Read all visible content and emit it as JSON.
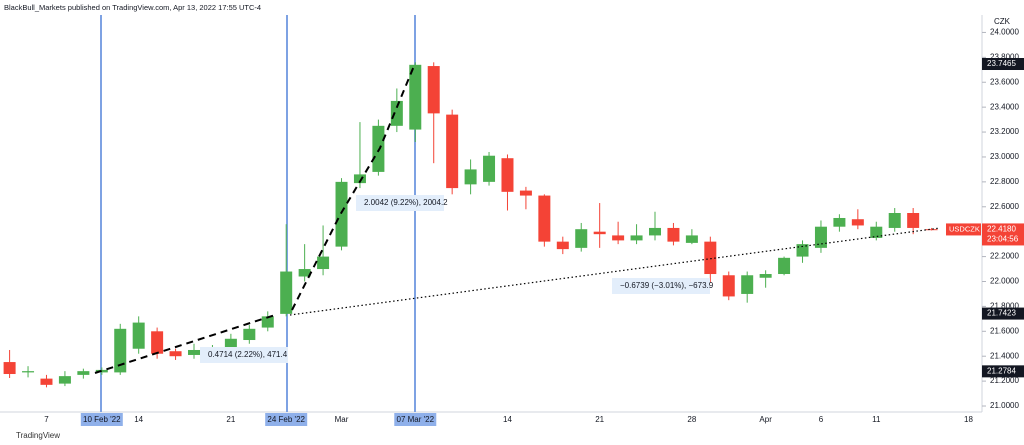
{
  "header": "BlackBull_Markets published on TradingView.com, Apr 13, 2022 17:55 UTC-4",
  "footer": "TradingView",
  "chart_data": {
    "type": "candlestick",
    "currency": "CZK",
    "symbol": "USDCZK",
    "countdown": "23:04:56",
    "categories": [
      null,
      null,
      "7",
      null,
      null,
      "10 Feb '22",
      null,
      "14",
      null,
      null,
      null,
      null,
      "21",
      null,
      null,
      "24 Feb '22",
      null,
      null,
      "Mar",
      null,
      null,
      null,
      "07 Mar '22",
      null,
      null,
      null,
      null,
      "14",
      null,
      null,
      null,
      null,
      "21",
      null,
      null,
      null,
      null,
      "28",
      null,
      null,
      null,
      "Apr",
      null,
      null,
      "6",
      null,
      null,
      "11",
      null,
      null,
      null,
      null,
      "18"
    ],
    "open": [
      21.353,
      21.27,
      21.22,
      21.18,
      21.25,
      21.27,
      21.27,
      21.46,
      21.6,
      21.44,
      21.41,
      21.44,
      21.45,
      21.53,
      21.63,
      21.74,
      22.04,
      22.1,
      22.28,
      22.79,
      22.88,
      23.25,
      23.22,
      23.73,
      23.34,
      22.78,
      22.8,
      22.99,
      22.73,
      22.69,
      22.32,
      22.27,
      22.4,
      22.37,
      22.33,
      22.37,
      22.43,
      22.31,
      22.32,
      22.05,
      21.9,
      22.03,
      22.06,
      22.2,
      22.27,
      22.44,
      22.5,
      22.35,
      22.43,
      22.55,
      22.42,
      null,
      null
    ],
    "high": [
      21.45,
      21.32,
      21.25,
      21.28,
      21.3,
      21.31,
      21.66,
      21.72,
      21.63,
      21.46,
      21.5,
      21.49,
      21.58,
      21.65,
      21.76,
      22.46,
      22.3,
      22.45,
      22.83,
      23.28,
      23.3,
      23.55,
      23.76,
      23.76,
      23.38,
      22.98,
      23.04,
      23.02,
      22.76,
      22.7,
      22.36,
      22.47,
      22.63,
      22.48,
      22.46,
      22.56,
      22.47,
      22.42,
      22.36,
      22.08,
      22.08,
      22.09,
      22.2,
      22.33,
      22.49,
      22.54,
      22.58,
      22.48,
      22.59,
      22.59,
      22.43,
      null,
      null
    ],
    "low": [
      21.225,
      21.23,
      21.15,
      21.16,
      21.22,
      21.25,
      21.25,
      21.42,
      21.38,
      21.37,
      21.38,
      21.41,
      21.42,
      21.5,
      21.6,
      21.72,
      22.0,
      22.05,
      22.25,
      22.75,
      22.85,
      23.2,
      23.12,
      22.95,
      22.7,
      22.7,
      22.77,
      22.57,
      22.58,
      22.28,
      22.22,
      22.24,
      22.27,
      22.3,
      22.3,
      22.33,
      22.29,
      22.3,
      21.99,
      21.85,
      21.83,
      21.95,
      22.05,
      22.15,
      22.23,
      22.4,
      22.42,
      22.33,
      22.4,
      22.38,
      22.41,
      null,
      null
    ],
    "close": [
      21.257,
      21.28,
      21.17,
      21.24,
      21.28,
      21.29,
      21.62,
      21.67,
      21.42,
      21.4,
      21.45,
      21.46,
      21.54,
      21.62,
      21.72,
      22.08,
      22.1,
      22.2,
      22.8,
      22.86,
      23.25,
      23.45,
      23.74,
      23.35,
      22.75,
      22.9,
      23.01,
      22.72,
      22.69,
      22.32,
      22.26,
      22.42,
      22.38,
      22.33,
      22.37,
      22.43,
      22.32,
      22.37,
      22.06,
      21.88,
      22.05,
      22.06,
      22.19,
      22.3,
      22.44,
      22.51,
      22.45,
      22.44,
      22.55,
      22.43,
      22.418,
      null,
      null
    ],
    "up_color": "#4caf50",
    "down_color": "#f44336",
    "ylim": [
      20.96,
      24.14
    ],
    "yticks": [
      {
        "value": 21.0,
        "label": "21.0000"
      },
      {
        "value": 21.2,
        "label": "21.2000"
      },
      {
        "value": 21.4,
        "label": "21.4000"
      },
      {
        "value": 21.6,
        "label": "21.6000"
      },
      {
        "value": 21.8,
        "label": "21.8000"
      },
      {
        "value": 22.0,
        "label": "22.0000"
      },
      {
        "value": 22.2,
        "label": "22.2000"
      },
      {
        "value": 22.4,
        "label": "22.4000"
      },
      {
        "value": 22.6,
        "label": "22.6000"
      },
      {
        "value": 22.8,
        "label": "22.8000"
      },
      {
        "value": 23.0,
        "label": "23.0000"
      },
      {
        "value": 23.2,
        "label": "23.2000"
      },
      {
        "value": 23.4,
        "label": "23.4000"
      },
      {
        "value": 23.6,
        "label": "23.6000"
      },
      {
        "value": 23.8,
        "label": "23.8000"
      },
      {
        "value": 24.0,
        "label": "24.0000"
      }
    ],
    "last_price": {
      "value": 22.418,
      "label": "22.4180"
    },
    "price_labels": [
      23.7465,
      21.7423,
      21.2784
    ],
    "annotations": [
      "0.4714 (2.22%), 471.4",
      "2.0042 (9.22%), 2004.2",
      "−0.6739 (−3.01%), −673.9"
    ]
  }
}
